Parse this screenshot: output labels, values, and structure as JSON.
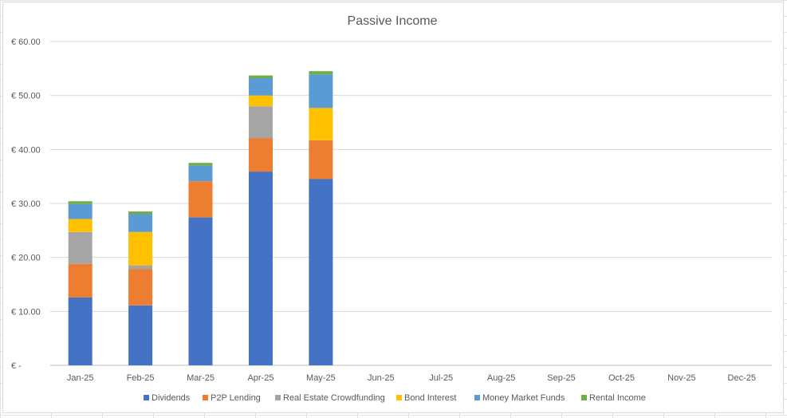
{
  "chart_data": {
    "type": "bar",
    "stacked": true,
    "title": "Passive Income",
    "categories": [
      "Jan-25",
      "Feb-25",
      "Mar-25",
      "Apr-25",
      "May-25",
      "Jun-25",
      "Jul-25",
      "Aug-25",
      "Sep-25",
      "Oct-25",
      "Nov-25",
      "Dec-25"
    ],
    "y_ticks": [
      {
        "value": 0,
        "label": "€ -"
      },
      {
        "value": 10,
        "label": "€ 10.00"
      },
      {
        "value": 20,
        "label": "€ 20.00"
      },
      {
        "value": 30,
        "label": "€ 30.00"
      },
      {
        "value": 40,
        "label": "€ 40.00"
      },
      {
        "value": 50,
        "label": "€ 50.00"
      },
      {
        "value": 60,
        "label": "€ 60.00"
      }
    ],
    "ylim": [
      0,
      60
    ],
    "grid": true,
    "legend_position": "bottom",
    "series": [
      {
        "name": "Dividends",
        "color": "#4472C4",
        "values": [
          12.6,
          11.1,
          27.4,
          35.9,
          34.5,
          null,
          null,
          null,
          null,
          null,
          null,
          null
        ]
      },
      {
        "name": "P2P Lending",
        "color": "#ED7D31",
        "values": [
          6.2,
          6.7,
          6.7,
          6.2,
          7.2,
          null,
          null,
          null,
          null,
          null,
          null,
          null
        ]
      },
      {
        "name": "Real Estate Crowdfunding",
        "color": "#A5A5A5",
        "values": [
          5.9,
          0.7,
          0,
          5.9,
          0,
          null,
          null,
          null,
          null,
          null,
          null,
          null
        ]
      },
      {
        "name": "Bond Interest",
        "color": "#FFC000",
        "values": [
          2.4,
          6.2,
          0,
          2.0,
          6.0,
          null,
          null,
          null,
          null,
          null,
          null,
          null
        ]
      },
      {
        "name": "Money Market Funds",
        "color": "#5B9BD5",
        "values": [
          2.8,
          3.3,
          2.9,
          3.2,
          6.2,
          null,
          null,
          null,
          null,
          null,
          null,
          null
        ]
      },
      {
        "name": "Rental Income",
        "color": "#70AD47",
        "values": [
          0.5,
          0.5,
          0.5,
          0.5,
          0.6,
          null,
          null,
          null,
          null,
          null,
          null,
          null
        ]
      }
    ]
  }
}
